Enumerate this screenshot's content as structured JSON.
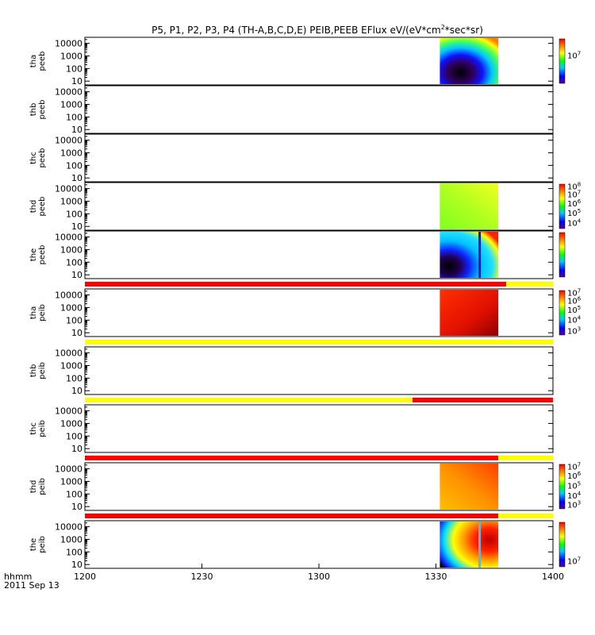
{
  "chart_data": {
    "type": "heatmap",
    "title": "P5, P1, P2, P3, P4 (TH-A,B,C,D,E) PEIB,PEEB EFlux eV/(eV*cm",
    "title_sup": "2",
    "title_tail": "*sec*sr)",
    "x_time_format_label": "hhmm",
    "date_label": "2011 Sep 13",
    "x_ticks": [
      "1200",
      "1230",
      "1300",
      "1330",
      "1400"
    ],
    "xlim": [
      0,
      120
    ],
    "y_scale": "log",
    "ylim": [
      5,
      30000
    ],
    "y_ticks": [
      "10",
      "100",
      "1000",
      "10000"
    ],
    "data_window": [
      91,
      106
    ],
    "panels": [
      {
        "id": "tha-peeb",
        "line1": "tha",
        "line2": "peeb",
        "fill": "cold",
        "divider": false,
        "colorbar": {
          "ticks": [
            {
              "base": "10",
              "exp": "7",
              "pos": 0.62
            }
          ]
        }
      },
      {
        "id": "thb-peeb",
        "line1": "thb",
        "line2": "peeb",
        "fill": "none",
        "divider": false,
        "colorbar": null
      },
      {
        "id": "thc-peeb",
        "line1": "thc",
        "line2": "peeb",
        "fill": "none",
        "divider": false,
        "colorbar": null
      },
      {
        "id": "thd-peeb",
        "line1": "thd",
        "line2": "peeb",
        "fill": "green",
        "divider": false,
        "colorbar": {
          "ticks": [
            {
              "base": "10",
              "exp": "8",
              "pos": 0.94
            },
            {
              "base": "10",
              "exp": "7",
              "pos": 0.76
            },
            {
              "base": "10",
              "exp": "6",
              "pos": 0.55
            },
            {
              "base": "10",
              "exp": "5",
              "pos": 0.34
            },
            {
              "base": "10",
              "exp": "4",
              "pos": 0.12
            }
          ]
        }
      },
      {
        "id": "the-peeb",
        "line1": "the",
        "line2": "peeb",
        "fill": "mixed",
        "divider": false,
        "colorbar": {
          "ticks": []
        }
      },
      {
        "id": "tha-peib",
        "line1": "tha",
        "line2": "peib",
        "fill": "red",
        "divider": true,
        "bar": {
          "segments": [
            {
              "x0": 0,
              "x1": 108,
              "color": "#ff0000"
            },
            {
              "x0": 108,
              "x1": 120,
              "color": "#ffff00"
            }
          ]
        },
        "colorbar": {
          "ticks": [
            {
              "base": "10",
              "exp": "7",
              "pos": 0.94
            },
            {
              "base": "10",
              "exp": "6",
              "pos": 0.76
            },
            {
              "base": "10",
              "exp": "5",
              "pos": 0.55
            },
            {
              "base": "10",
              "exp": "4",
              "pos": 0.33
            },
            {
              "base": "10",
              "exp": "3",
              "pos": 0.08
            }
          ]
        }
      },
      {
        "id": "thb-peib",
        "line1": "thb",
        "line2": "peib",
        "fill": "none",
        "divider": true,
        "bar": {
          "segments": [
            {
              "x0": 0,
              "x1": 120,
              "color": "#ffff00"
            }
          ]
        },
        "colorbar": null
      },
      {
        "id": "thc-peib",
        "line1": "thc",
        "line2": "peib",
        "fill": "none",
        "divider": true,
        "bar": {
          "segments": [
            {
              "x0": 0,
              "x1": 84,
              "color": "#ffff00"
            },
            {
              "x0": 84,
              "x1": 120,
              "color": "#ff0000"
            }
          ]
        },
        "colorbar": null
      },
      {
        "id": "thd-peib",
        "line1": "thd",
        "line2": "peib",
        "fill": "orange",
        "divider": true,
        "bar": {
          "segments": [
            {
              "x0": 0,
              "x1": 106,
              "color": "#ff0000"
            },
            {
              "x0": 106,
              "x1": 120,
              "color": "#ffff00"
            }
          ]
        },
        "colorbar": {
          "ticks": [
            {
              "base": "10",
              "exp": "7",
              "pos": 0.94
            },
            {
              "base": "10",
              "exp": "6",
              "pos": 0.73
            },
            {
              "base": "10",
              "exp": "5",
              "pos": 0.51
            },
            {
              "base": "10",
              "exp": "4",
              "pos": 0.29
            },
            {
              "base": "10",
              "exp": "3",
              "pos": 0.08
            }
          ]
        }
      },
      {
        "id": "the-peib",
        "line1": "the",
        "line2": "peib",
        "fill": "hot",
        "divider": true,
        "bar": {
          "segments": [
            {
              "x0": 0,
              "x1": 106,
              "color": "#ff0000"
            },
            {
              "x0": 106,
              "x1": 120,
              "color": "#ffff00"
            }
          ]
        },
        "colorbar": {
          "ticks": [
            {
              "base": "10",
              "exp": "7",
              "pos": 0.12
            }
          ]
        }
      }
    ],
    "colors": {
      "frame": "#000000",
      "spectrum": [
        "#5a00a0",
        "#0000ff",
        "#00c8ff",
        "#00ff00",
        "#ffff00",
        "#ff8000",
        "#ff0000"
      ]
    }
  }
}
